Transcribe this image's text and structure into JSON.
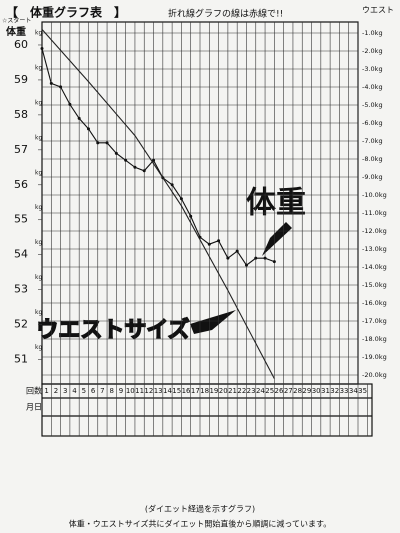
{
  "chart_data": {
    "type": "line",
    "title": "【　体重グラフ表　】",
    "subtitle": "折れ線グラフの線は赤線で!!",
    "start_label": "☆スタート",
    "y_axis_label": "体重",
    "y2_axis_label": "ウエスト",
    "y_unit": "kg",
    "x_row_label": "回数",
    "date_row_label": "月日",
    "categories": [
      1,
      2,
      3,
      4,
      5,
      6,
      7,
      8,
      9,
      10,
      11,
      12,
      13,
      14,
      15,
      16,
      17,
      18,
      19,
      20,
      21,
      22,
      23,
      24,
      25,
      26,
      27,
      28,
      29,
      30,
      31,
      32,
      33,
      34,
      35
    ],
    "xlim": [
      0,
      34
    ],
    "ylim": [
      50.3,
      60.6
    ],
    "yticks": [
      60,
      59,
      58,
      57,
      56,
      55,
      54,
      53,
      52,
      51
    ],
    "y2lim": [
      -20.5,
      -0.5
    ],
    "y2ticks": [
      {
        "value": -1,
        "label": "-1.0kg"
      },
      {
        "value": -2,
        "label": "-2.0kg"
      },
      {
        "value": -3,
        "label": "-3.0kg"
      },
      {
        "value": -4,
        "label": "-4.0kg"
      },
      {
        "value": -5,
        "label": "-5.0kg"
      },
      {
        "value": -6,
        "label": "-6.0kg"
      },
      {
        "value": -7,
        "label": "-7.0kg"
      },
      {
        "value": -8,
        "label": "-8.0kg"
      },
      {
        "value": -9,
        "label": "-9.0kg"
      },
      {
        "value": -10,
        "label": "-10.0kg"
      },
      {
        "value": -11,
        "label": "-11.0kg"
      },
      {
        "value": -12,
        "label": "-12.0kg"
      },
      {
        "value": -13,
        "label": "-13.0kg"
      },
      {
        "value": -14,
        "label": "-14.0kg"
      },
      {
        "value": -15,
        "label": "-15.0kg"
      },
      {
        "value": -16,
        "label": "-16.0kg"
      },
      {
        "value": -17,
        "label": "-17.0kg"
      },
      {
        "value": -18,
        "label": "-18.0kg"
      },
      {
        "value": -19,
        "label": "-19.0kg"
      },
      {
        "value": -20,
        "label": "-20.0kg"
      }
    ],
    "grid": true,
    "series": [
      {
        "name": "体重",
        "color": "#111111",
        "x": [
          0,
          1,
          2,
          3,
          4,
          5,
          6,
          7,
          8,
          9,
          10,
          11,
          12,
          13,
          14,
          15,
          16,
          17,
          18,
          19,
          20,
          21,
          22,
          23,
          24,
          25
        ],
        "values": [
          59.9,
          58.9,
          58.8,
          58.3,
          57.9,
          57.6,
          57.2,
          57.2,
          56.9,
          56.7,
          56.5,
          56.4,
          56.7,
          56.2,
          56.0,
          55.6,
          55.1,
          54.5,
          54.3,
          54.4,
          53.9,
          54.1,
          53.7,
          53.9,
          53.9,
          53.8
        ]
      },
      {
        "name": "ウエストサイズ",
        "color": "#222222",
        "axis": "y2",
        "x": [
          0,
          5,
          10,
          15,
          20,
          25
        ],
        "values": [
          -0.8,
          -3.7,
          -6.7,
          -10.6,
          -15.3,
          -20.2
        ]
      }
    ],
    "caption": "(ダイエット経過を示すグラフ)",
    "note": "体重・ウエストサイズ共にダイエット開始直後から順調に減っています。"
  }
}
